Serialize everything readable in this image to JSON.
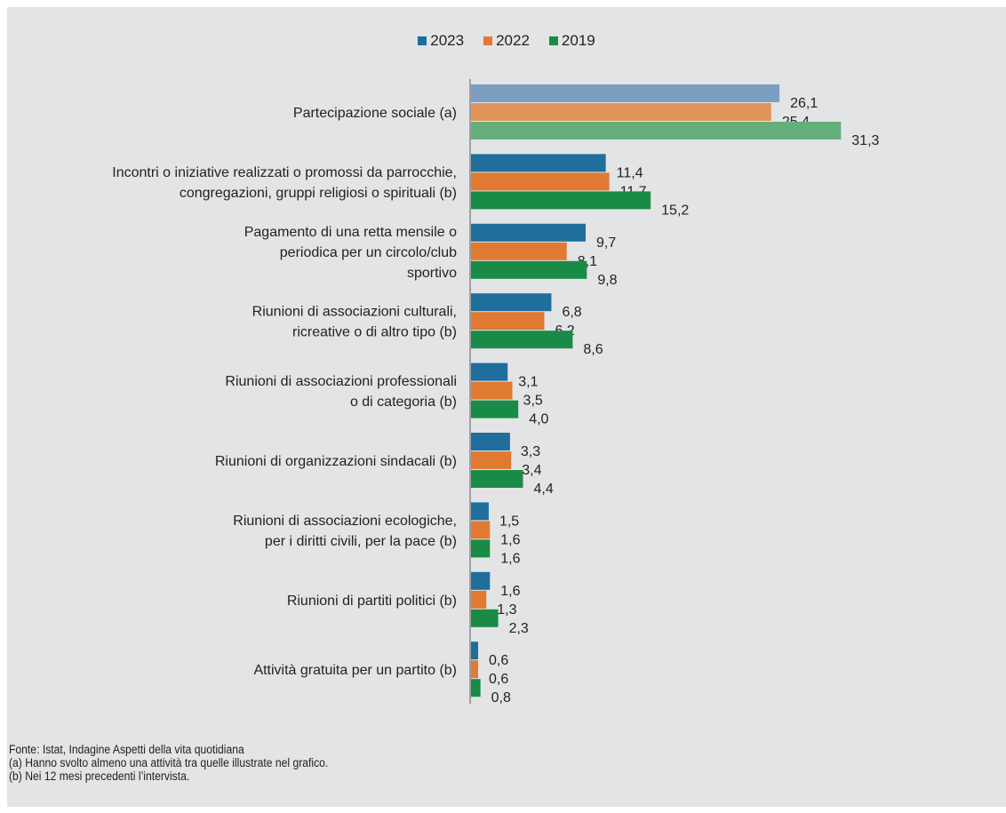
{
  "chart_data": {
    "type": "bar",
    "orientation": "horizontal",
    "grid": false,
    "legend_position": "top-center",
    "categories": [
      [
        "Partecipazione sociale (a)"
      ],
      [
        "Incontri o iniziative realizzati o promossi da parrocchie,",
        "congregazioni, gruppi religiosi o spirituali (b)"
      ],
      [
        "Pagamento di una retta mensile o",
        "periodica per un circolo/club",
        "sportivo"
      ],
      [
        "Riunioni di associazioni culturali,",
        "ricreative o di altro tipo (b)"
      ],
      [
        "Riunioni di associazioni professionali",
        "o di categoria (b)"
      ],
      [
        "Riunioni di organizzazioni sindacali (b)"
      ],
      [
        "Riunioni di associazioni ecologiche,",
        "per i diritti civili, per la pace (b)"
      ],
      [
        "Riunioni di partiti politici (b)"
      ],
      [
        "Attività gratuita per un partito (b)"
      ]
    ],
    "series": [
      {
        "name": "2023",
        "color": "#1f6e9c",
        "values": [
          26.1,
          11.4,
          9.7,
          6.8,
          3.1,
          3.3,
          1.5,
          1.6,
          0.6
        ],
        "labels": [
          "26,1",
          "11,4",
          "9,7",
          "6,8",
          "3,1",
          "3,3",
          "1,5",
          "1,6",
          "0,6"
        ]
      },
      {
        "name": "2022",
        "color": "#e07a33",
        "values": [
          25.4,
          11.7,
          8.1,
          6.2,
          3.5,
          3.4,
          1.6,
          1.3,
          0.6
        ],
        "labels": [
          "25,4",
          "11,7",
          "8,1",
          "6,2",
          "3,5",
          "3,4",
          "1,6",
          "1,3",
          "0,6"
        ]
      },
      {
        "name": "2019",
        "color": "#1a8b46",
        "values": [
          31.3,
          15.2,
          9.8,
          8.6,
          4.0,
          4.4,
          1.6,
          2.3,
          0.8
        ],
        "labels": [
          "31,3",
          "15,2",
          "9,8",
          "8,6",
          "4,0",
          "4,4",
          "1,6",
          "2,3",
          "0,8"
        ]
      }
    ],
    "highlight_first_category_colors": [
      "#7c9ec0",
      "#e2955b",
      "#66ae7c"
    ]
  },
  "footnotes": {
    "source": "Fonte: Istat, Indagine Aspetti della vita quotidiana",
    "note_a": "(a) Hanno svolto almeno una attività tra quelle illustrate nel grafico.",
    "note_b": "(b) Nei 12 mesi precedenti l’intervista."
  }
}
